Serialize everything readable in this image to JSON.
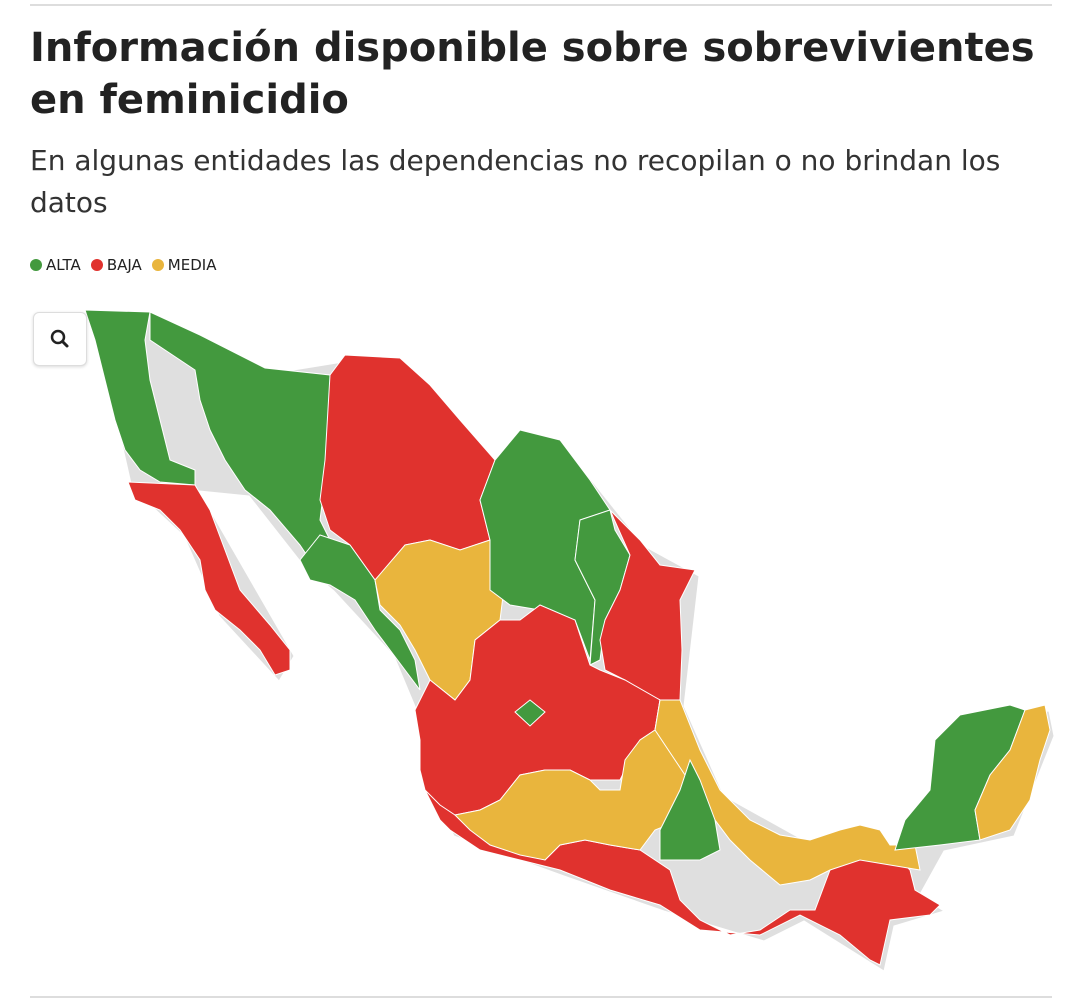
{
  "header": {
    "title": "Información disponible sobre sobrevivientes en feminicidio",
    "subtitle": "En algunas entidades las dependencias no recopilan o no brindan los datos"
  },
  "legend": [
    {
      "label": "ALTA",
      "color": "#43993e"
    },
    {
      "label": "BAJA",
      "color": "#e0322e"
    },
    {
      "label": "MEDIA",
      "color": "#e9b53d"
    }
  ]
}
